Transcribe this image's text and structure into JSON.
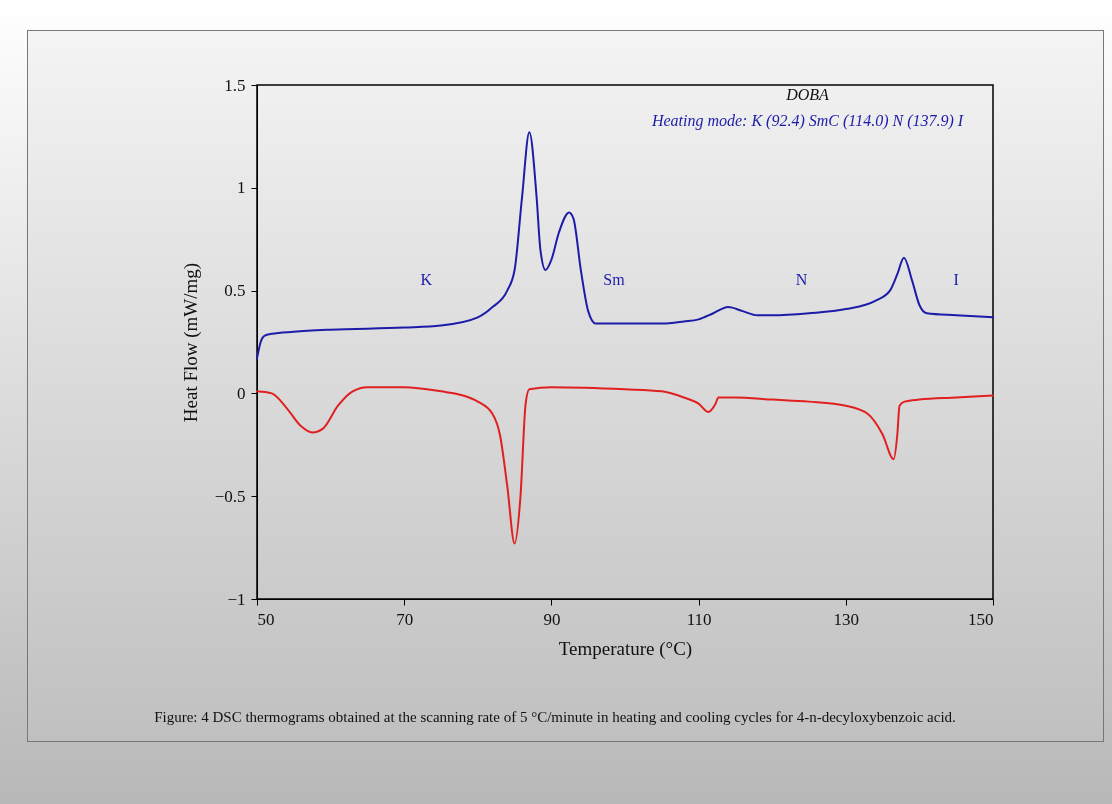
{
  "chart_data": {
    "type": "line",
    "xlabel": "Temperature (°C)",
    "ylabel": "Heat Flow (mW/mg)",
    "xlim": [
      50,
      150
    ],
    "xticks": [
      50,
      70,
      90,
      110,
      130,
      150
    ],
    "ylim": [
      -1,
      1.5
    ],
    "yticks": [
      -1,
      -0.5,
      0,
      0.5,
      1,
      1.5
    ],
    "grid": false,
    "marker": "none",
    "line_style": "solid",
    "series": [
      {
        "color": "#1c1ca8",
        "x": [
          50,
          50.5,
          51,
          52,
          55,
          60,
          70,
          75,
          80,
          82,
          84,
          85,
          86,
          87,
          88,
          88.5,
          89.2,
          90,
          91,
          92.4,
          93,
          94,
          95,
          96,
          100,
          105,
          108,
          110,
          112,
          114,
          116,
          118,
          120,
          125,
          130,
          134,
          136,
          137,
          137.9,
          139,
          140,
          141,
          145,
          150
        ],
        "values": [
          0.17,
          0.25,
          0.28,
          0.29,
          0.3,
          0.31,
          0.32,
          0.33,
          0.37,
          0.42,
          0.5,
          0.6,
          0.95,
          1.27,
          0.95,
          0.7,
          0.6,
          0.65,
          0.78,
          0.88,
          0.85,
          0.6,
          0.4,
          0.34,
          0.34,
          0.34,
          0.35,
          0.36,
          0.39,
          0.42,
          0.4,
          0.38,
          0.38,
          0.39,
          0.41,
          0.45,
          0.5,
          0.58,
          0.66,
          0.55,
          0.43,
          0.39,
          0.38,
          0.37
        ]
      },
      {
        "color": "#e02020",
        "x": [
          50,
          52,
          54,
          56,
          57.5,
          59,
          61,
          63,
          65,
          70,
          75,
          78,
          80,
          82,
          83,
          84,
          85,
          85.8,
          86.5,
          87,
          90,
          100,
          105,
          108,
          110,
          111.3,
          112.3,
          112.7,
          115,
          120,
          125,
          130,
          133,
          135,
          136.5,
          137,
          137.3,
          138,
          140,
          145,
          150
        ],
        "values": [
          0.01,
          0,
          -0.07,
          -0.16,
          -0.19,
          -0.17,
          -0.06,
          0.01,
          0.03,
          0.03,
          0.01,
          -0.01,
          -0.04,
          -0.1,
          -0.2,
          -0.45,
          -0.73,
          -0.5,
          -0.05,
          0.02,
          0.03,
          0.02,
          0.01,
          -0.02,
          -0.05,
          -0.09,
          -0.05,
          -0.02,
          -0.02,
          -0.03,
          -0.04,
          -0.06,
          -0.1,
          -0.2,
          -0.32,
          -0.2,
          -0.06,
          -0.04,
          -0.03,
          -0.02,
          -0.01
        ]
      }
    ],
    "annotations": [
      "DOBA",
      "Heating mode: K (92.4) SmC (114.0) N (137.9) I",
      "K",
      "Sm",
      "N",
      "I",
      "Figure: 4  DSC thermograms obtained at the scanning rate of 5 °C/minute in heating and cooling cycles for 4-n-decyloxybenzoic acid."
    ]
  }
}
